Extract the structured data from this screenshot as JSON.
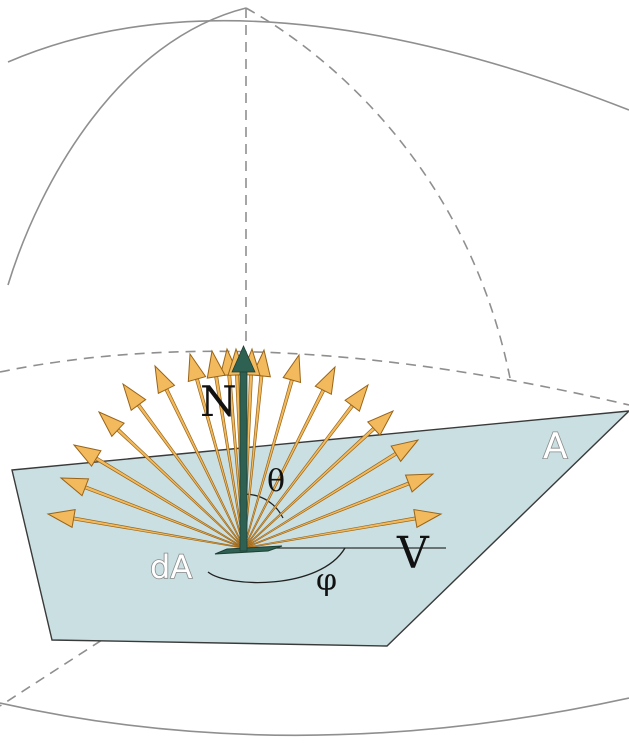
{
  "labels": {
    "normal": "N",
    "theta": "θ",
    "phi": "φ",
    "view": "V",
    "surface": "A",
    "patch": "dA"
  },
  "colors": {
    "sphere": "#8f8f8f",
    "plane_fill": "#c9dfe1",
    "plane_stroke": "#3a3a3a",
    "normal_arrow": "#2f6152",
    "ray_light": "#f2ba5d",
    "ray_dark": "#9a6418",
    "patch": "#2f6152"
  },
  "rays": {
    "count": 19
  }
}
